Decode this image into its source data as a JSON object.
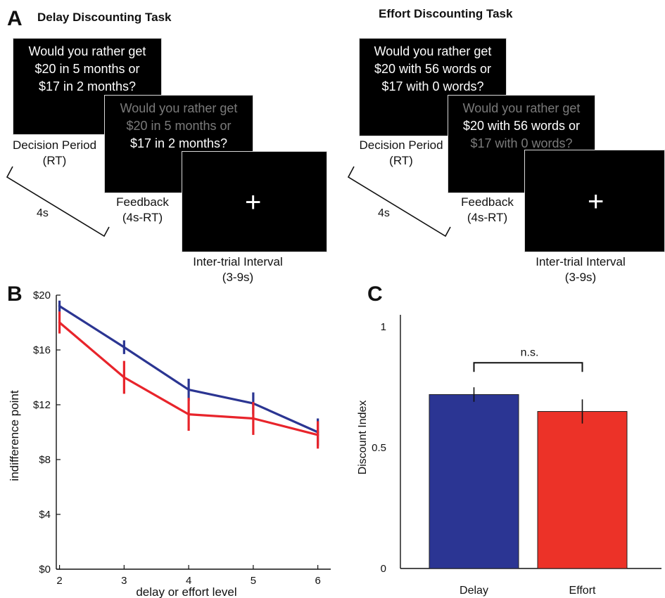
{
  "panelA": {
    "letter": "A",
    "delay_task": {
      "title": "Delay Discounting Task",
      "decision_text": [
        "Would you rather get",
        "$20 in 5 months or",
        "$17 in 2 months?"
      ],
      "feedback_text": [
        "Would you rather get",
        "$20 in 5 months or",
        "$17 in 2 months?"
      ],
      "cross": "+",
      "decision_label": [
        "Decision Period",
        "(RT)"
      ],
      "feedback_label": [
        "Feedback",
        "(4s-RT)"
      ],
      "iti_label": [
        "Inter-trial Interval",
        "(3-9s)"
      ],
      "duration": "4s"
    },
    "effort_task": {
      "title": "Effort Discounting Task",
      "decision_text": [
        "Would you rather get",
        "$20 with 56 words or",
        "$17 with 0 words?"
      ],
      "feedback_text": [
        "Would you rather get",
        "$20 with 56 words or",
        "$17 with 0 words?"
      ],
      "cross": "+",
      "decision_label": [
        "Decision Period",
        "(RT)"
      ],
      "feedback_label": [
        "Feedback",
        "(4s-RT)"
      ],
      "iti_label": [
        "Inter-trial Interval",
        "(3-9s)"
      ],
      "duration": "4s"
    }
  },
  "chart_data": [
    {
      "panel": "B",
      "type": "line",
      "xlabel": "delay or effort level",
      "ylabel": "indifference point",
      "x": [
        2,
        3,
        4,
        5,
        6
      ],
      "xlim": [
        1.95,
        6.2
      ],
      "ylim": [
        0,
        20
      ],
      "yticks": [
        0,
        4,
        8,
        12,
        16,
        20
      ],
      "ytick_labels": [
        "$0",
        "$4",
        "$8",
        "$12",
        "$16",
        "$20"
      ],
      "series": [
        {
          "color": "#2b3592",
          "values": [
            19.2,
            16.2,
            13.1,
            12.1,
            10.0
          ],
          "errors": [
            0.4,
            0.5,
            0.8,
            0.8,
            1.0
          ]
        },
        {
          "color": "#e8242b",
          "values": [
            18.0,
            14.0,
            11.3,
            11.0,
            9.8
          ],
          "errors": [
            0.8,
            1.2,
            1.2,
            1.2,
            1.0
          ]
        }
      ],
      "grid": false
    },
    {
      "panel": "C",
      "type": "bar",
      "ylabel": "Discount Index",
      "categories": [
        "Delay",
        "Effort"
      ],
      "values": [
        0.72,
        0.65
      ],
      "errors": [
        0.03,
        0.05
      ],
      "colors": [
        "#2b3593",
        "#ec3228"
      ],
      "ylim": [
        0,
        1.05
      ],
      "yticks": [
        0,
        0.5,
        1
      ],
      "ytick_labels": [
        "0",
        "0.5",
        "1"
      ],
      "annotation": "n.s.",
      "grid": false
    }
  ]
}
